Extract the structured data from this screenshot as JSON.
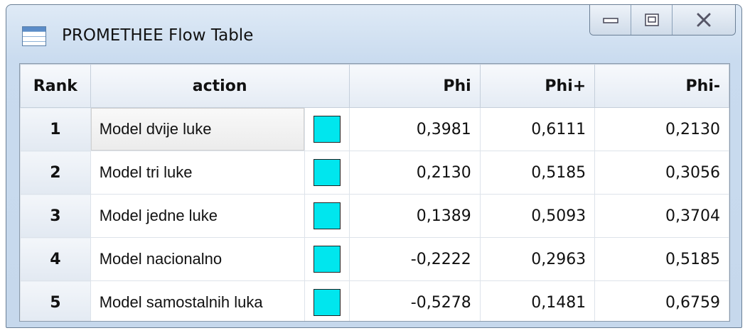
{
  "window": {
    "title": "PROMETHEE Flow Table"
  },
  "table": {
    "headers": [
      "Rank",
      "action",
      "Phi",
      "Phi+",
      "Phi-"
    ],
    "rows": [
      [
        "1",
        "Model dvije luke",
        "0,3981",
        "0,6111",
        "0,2130"
      ],
      [
        "2",
        "Model tri luke",
        "0,2130",
        "0,5185",
        "0,3056"
      ],
      [
        "3",
        "Model jedne luke",
        "0,1389",
        "0,5093",
        "0,3704"
      ],
      [
        "4",
        "Model nacionalno",
        "-0,2222",
        "0,2963",
        "0,5185"
      ],
      [
        "5",
        "Model samostalnih luka",
        "-0,5278",
        "0,1481",
        "0,6759"
      ]
    ]
  }
}
